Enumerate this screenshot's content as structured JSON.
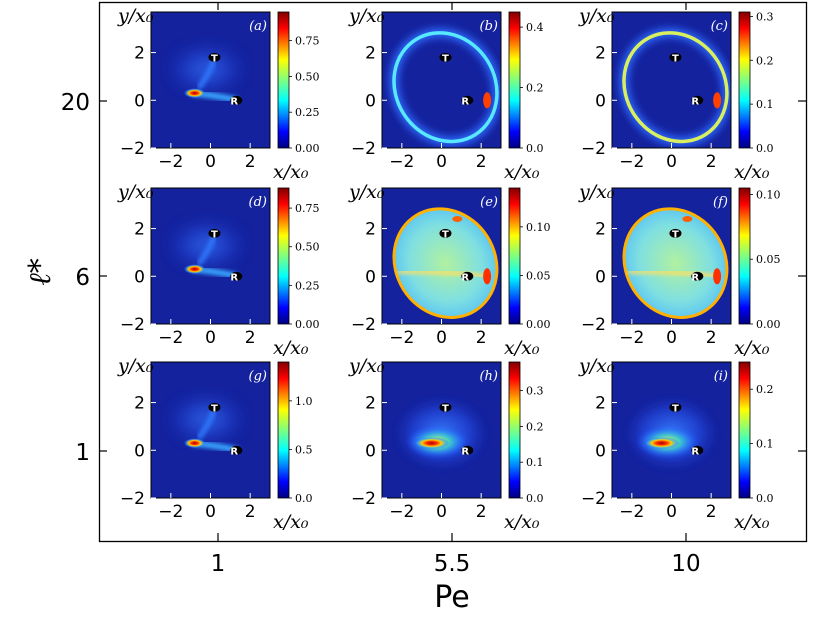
{
  "chart_data": {
    "type": "heatmap",
    "grid_layout": "3x3",
    "outer_xlabel": "Pe",
    "outer_ylabel": "ℓ*",
    "outer_xticks": [
      "1",
      "5.5",
      "10"
    ],
    "outer_yticks": [
      "20",
      "6",
      "1"
    ],
    "panel_xlabel": "x/x₀",
    "panel_ylabel": "y/x₀",
    "panel_xticks": [
      -2,
      0,
      2
    ],
    "panel_yticks": [
      -2,
      0,
      2
    ],
    "panel_xlim": [
      -3,
      3
    ],
    "panel_ylim": [
      -2,
      3.7
    ],
    "colormap": "jet",
    "markers": [
      {
        "label": "T",
        "x": 0.2,
        "y": 1.8
      },
      {
        "label": "R",
        "x": 1.3,
        "y": 0.0
      }
    ],
    "panels": [
      {
        "tag": "(a)",
        "Pe": 1,
        "l_star": 20,
        "cbar_max": 0.95,
        "cbar_ticks": [
          "0.00",
          "0.25",
          "0.50",
          "0.75"
        ],
        "pattern": "localized"
      },
      {
        "tag": "(b)",
        "Pe": 5.5,
        "l_star": 20,
        "cbar_max": 0.45,
        "cbar_ticks": [
          "0.0",
          "0.2",
          "0.4"
        ],
        "pattern": "ring"
      },
      {
        "tag": "(c)",
        "Pe": 10,
        "l_star": 20,
        "cbar_max": 0.31,
        "cbar_ticks": [
          "0.0",
          "0.1",
          "0.2",
          "0.3"
        ],
        "pattern": "ring"
      },
      {
        "tag": "(d)",
        "Pe": 1,
        "l_star": 6,
        "cbar_max": 0.88,
        "cbar_ticks": [
          "0.00",
          "0.25",
          "0.50",
          "0.75"
        ],
        "pattern": "localized"
      },
      {
        "tag": "(e)",
        "Pe": 5.5,
        "l_star": 6,
        "cbar_max": 0.14,
        "cbar_ticks": [
          "0.00",
          "0.05",
          "0.10"
        ],
        "pattern": "filled"
      },
      {
        "tag": "(f)",
        "Pe": 10,
        "l_star": 6,
        "cbar_max": 0.105,
        "cbar_ticks": [
          "0.00",
          "0.05",
          "0.10"
        ],
        "pattern": "filled"
      },
      {
        "tag": "(g)",
        "Pe": 1,
        "l_star": 1,
        "cbar_max": 1.4,
        "cbar_ticks": [
          "0.0",
          "0.5",
          "1.0"
        ],
        "pattern": "localized"
      },
      {
        "tag": "(h)",
        "Pe": 5.5,
        "l_star": 1,
        "cbar_max": 0.38,
        "cbar_ticks": [
          "0.0",
          "0.1",
          "0.2",
          "0.3"
        ],
        "pattern": "diffuse"
      },
      {
        "tag": "(i)",
        "Pe": 10,
        "l_star": 1,
        "cbar_max": 0.25,
        "cbar_ticks": [
          "0.0",
          "0.1",
          "0.2"
        ],
        "pattern": "diffuse"
      }
    ]
  }
}
